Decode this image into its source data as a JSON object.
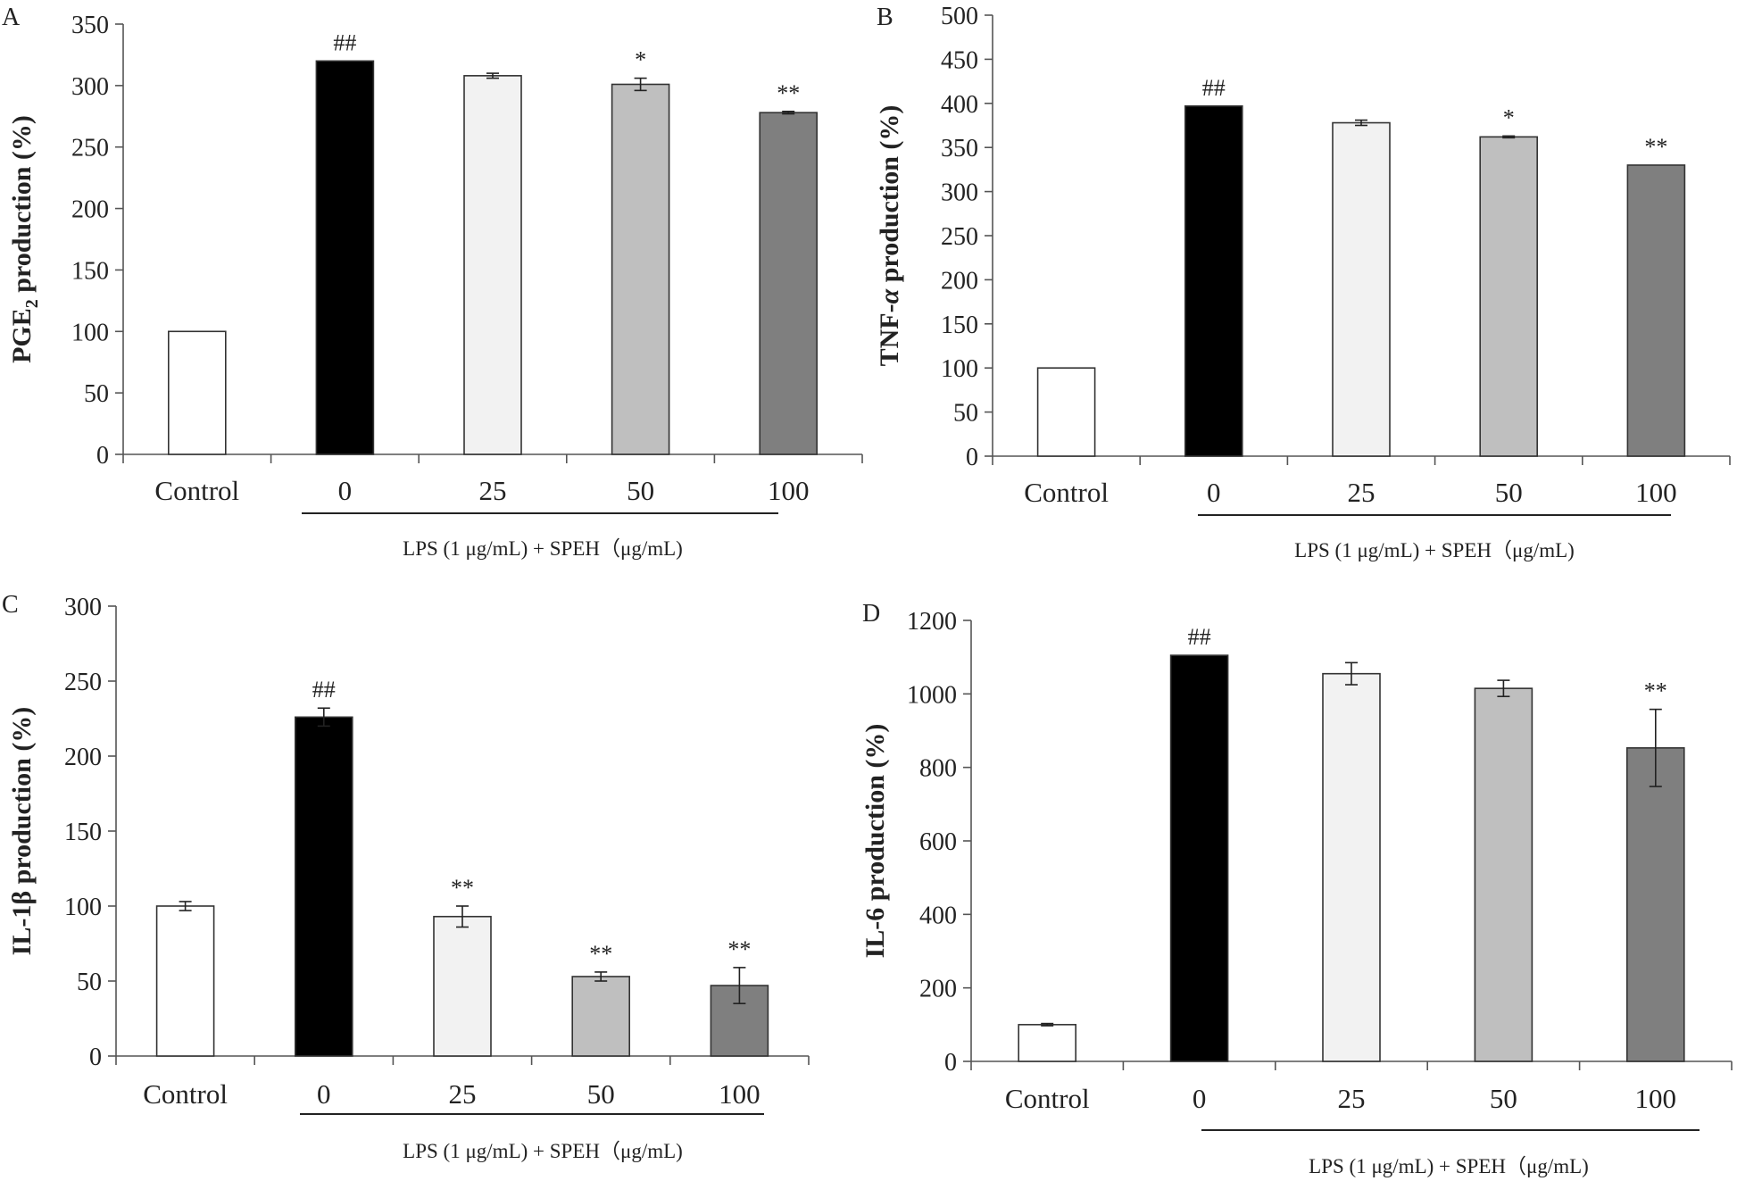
{
  "chart_data": [
    {
      "type": "bar",
      "panel": "A",
      "ylabel": "PGE2 production (%)",
      "ylabel_main": "PGE",
      "ylabel_sub": "2",
      "ylabel_rest": " production (%)",
      "ylim": [
        0,
        350
      ],
      "yticks": [
        "0",
        "50",
        "100",
        "150",
        "200",
        "250",
        "300",
        "350"
      ],
      "categories": [
        "Control",
        "0",
        "25",
        "50",
        "100"
      ],
      "values": [
        100,
        320,
        308,
        301,
        278
      ],
      "errors": [
        0,
        0,
        2,
        5,
        1
      ],
      "significance": [
        "",
        "##",
        "",
        "*",
        "**"
      ],
      "group_label": "LPS (1 μg/mL) + SPEH（μg/mL)",
      "grid": false
    },
    {
      "type": "bar",
      "panel": "B",
      "ylabel": "TNF-α production (%)",
      "ylabel_main": "TNF-",
      "ylabel_italic": "α",
      "ylabel_rest": " production (%)",
      "ylim": [
        0,
        500
      ],
      "yticks": [
        "0",
        "50",
        "100",
        "150",
        "200",
        "250",
        "300",
        "350",
        "400",
        "450",
        "500"
      ],
      "categories": [
        "Control",
        "0",
        "25",
        "50",
        "100"
      ],
      "values": [
        100,
        397,
        378,
        362,
        330
      ],
      "errors": [
        0,
        0,
        3,
        1,
        0
      ],
      "significance": [
        "",
        "##",
        "",
        "*",
        "**"
      ],
      "group_label": "LPS (1 μg/mL) + SPEH（μg/mL)",
      "grid": false
    },
    {
      "type": "bar",
      "panel": "C",
      "ylabel": "IL-1β production (%)",
      "ylim": [
        0,
        300
      ],
      "yticks": [
        "0",
        "50",
        "100",
        "150",
        "200",
        "250",
        "300"
      ],
      "categories": [
        "Control",
        "0",
        "25",
        "50",
        "100"
      ],
      "values": [
        100,
        226,
        93,
        53,
        47
      ],
      "errors": [
        3,
        6,
        7,
        3,
        12
      ],
      "significance": [
        "",
        "##",
        "**",
        "**",
        "**"
      ],
      "group_label": "LPS (1 μg/mL) + SPEH（μg/mL)",
      "grid": false
    },
    {
      "type": "bar",
      "panel": "D",
      "ylabel": "IL-6 production (%)",
      "ylim": [
        0,
        1200
      ],
      "yticks": [
        "0",
        "200",
        "400",
        "600",
        "800",
        "1000",
        "1200"
      ],
      "categories": [
        "Control",
        "0",
        "25",
        "50",
        "100"
      ],
      "values": [
        100,
        1105,
        1055,
        1015,
        853
      ],
      "errors": [
        3,
        0,
        30,
        22,
        105
      ],
      "significance": [
        "",
        "##",
        "",
        "",
        "**"
      ],
      "group_label": "LPS (1 μg/mL) + SPEH（μg/mL)",
      "grid": false
    }
  ],
  "colors": {
    "bar_fills": [
      "#ffffff",
      "#000000",
      "#f2f2f2",
      "#bfbfbf",
      "#7f7f7f"
    ],
    "bar_stroke": "#333333",
    "axis": "#555555"
  }
}
